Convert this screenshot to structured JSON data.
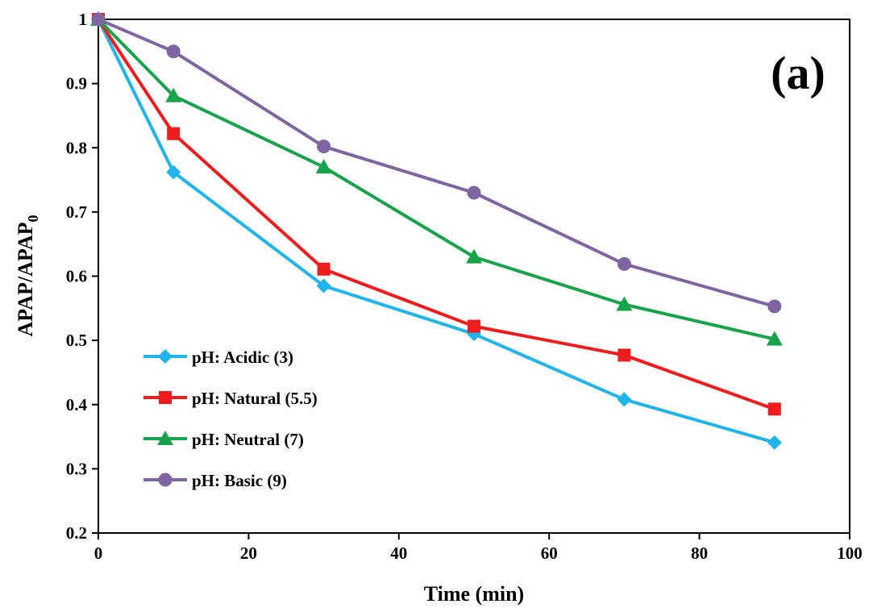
{
  "chart_data": {
    "type": "line",
    "panel_label": "(a)",
    "xlabel": "Time (min)",
    "ylabel": {
      "main": "APAP/APAP",
      "sub": "0"
    },
    "xlim": [
      0,
      100
    ],
    "ylim": [
      0.2,
      1.0
    ],
    "x_ticks": [
      "0",
      "20",
      "40",
      "60",
      "80",
      "100"
    ],
    "y_ticks": [
      "0.2",
      "0.3",
      "0.4",
      "0.5",
      "0.6",
      "0.7",
      "0.8",
      "0.9",
      "1"
    ],
    "grid": false,
    "legend_position": "bottom-left",
    "x": [
      0,
      10,
      30,
      50,
      70,
      90
    ],
    "series": [
      {
        "name": "pH: Acidic (3)",
        "values": [
          1.0,
          0.762,
          0.585,
          0.51,
          0.408,
          0.341
        ],
        "color": "#1fb4ec",
        "marker": "diamond"
      },
      {
        "name": "pH: Natural (5.5)",
        "values": [
          1.0,
          0.822,
          0.611,
          0.522,
          0.477,
          0.393
        ],
        "color": "#ee1c1c",
        "marker": "square"
      },
      {
        "name": "pH: Neutral (7)",
        "values": [
          1.0,
          0.881,
          0.77,
          0.63,
          0.556,
          0.502
        ],
        "color": "#16a34a",
        "marker": "triangle"
      },
      {
        "name": "pH: Basic (9)",
        "values": [
          1.0,
          0.95,
          0.802,
          0.73,
          0.619,
          0.553
        ],
        "color": "#8064a2",
        "marker": "circle"
      }
    ]
  }
}
